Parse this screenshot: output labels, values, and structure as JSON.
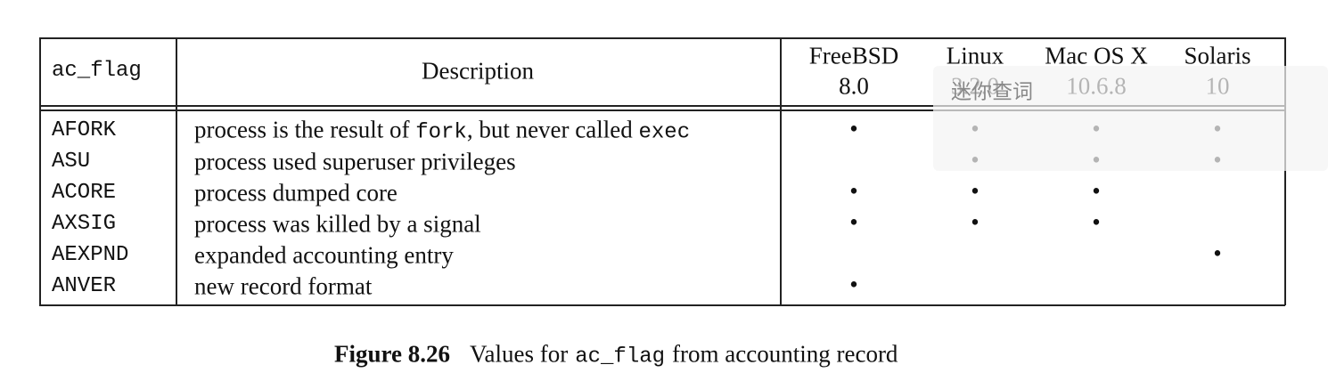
{
  "table": {
    "header": [
      "ac_flag",
      "Description"
    ],
    "systems": [
      {
        "name": "FreeBSD",
        "version": "8.0"
      },
      {
        "name": "Linux",
        "version": "3.2.0"
      },
      {
        "name": "Mac OS X",
        "version": "10.6.8"
      },
      {
        "name": "Solaris",
        "version": "10"
      }
    ],
    "rows": [
      {
        "flag": "AFORK",
        "description": [
          {
            "text": "process is the result of "
          },
          {
            "text": "fork",
            "mono": true
          },
          {
            "text": ", but never called "
          },
          {
            "text": "exec",
            "mono": true
          }
        ],
        "support": [
          "•",
          "•",
          "•",
          "•"
        ]
      },
      {
        "flag": "ASU",
        "description": [
          {
            "text": "process used superuser privileges"
          }
        ],
        "support": [
          null,
          "•",
          "•",
          "•"
        ]
      },
      {
        "flag": "ACORE",
        "description": [
          {
            "text": "process dumped core"
          }
        ],
        "support": [
          "•",
          "•",
          "•",
          null
        ]
      },
      {
        "flag": "AXSIG",
        "description": [
          {
            "text": "process was killed by a signal"
          }
        ],
        "support": [
          "•",
          "•",
          "•",
          null
        ]
      },
      {
        "flag": "AEXPND",
        "description": [
          {
            "text": "expanded accounting entry"
          }
        ],
        "support": [
          null,
          null,
          null,
          "•"
        ]
      },
      {
        "flag": "ANVER",
        "description": [
          {
            "text": "new record format"
          }
        ],
        "support": [
          "•",
          null,
          null,
          null
        ]
      }
    ]
  },
  "caption": {
    "label": "Figure 8.26",
    "parts": [
      {
        "text": "Values for"
      },
      {
        "text": "ac_flag",
        "mono": true
      },
      {
        "text": "from accounting record"
      }
    ]
  },
  "overlay": {
    "label": "迷你查词"
  }
}
